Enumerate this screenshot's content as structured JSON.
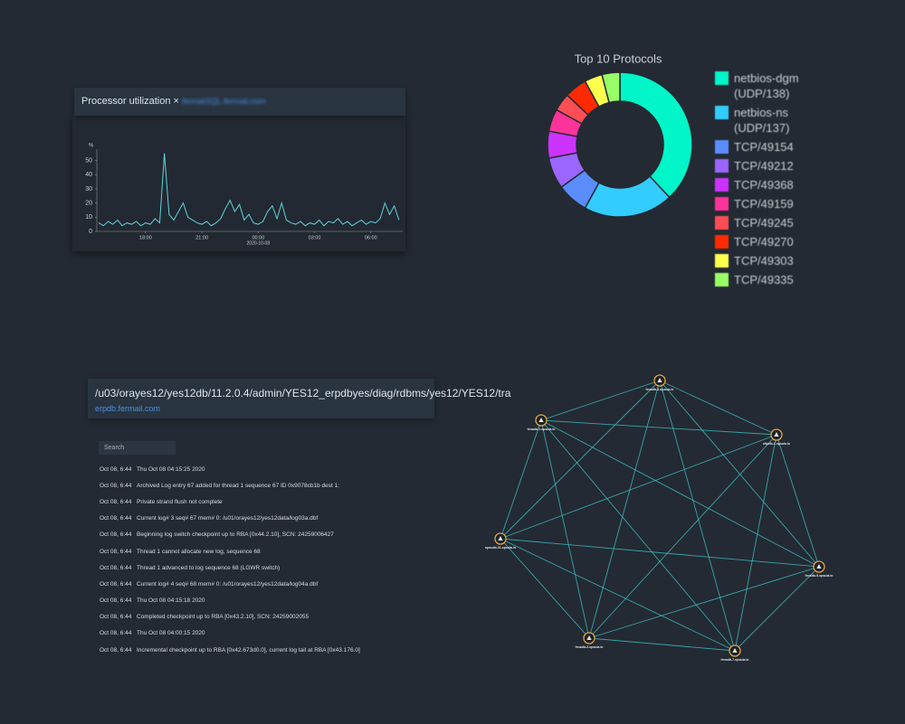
{
  "chart_data": [
    {
      "type": "line",
      "y_unit": "%",
      "color": "#5fd3dc",
      "x": [
        15.5,
        15.75,
        16,
        16.25,
        16.5,
        16.75,
        17,
        17.25,
        17.5,
        17.75,
        18,
        18.25,
        18.5,
        18.75,
        19,
        19.25,
        19.5,
        19.75,
        20,
        20.25,
        20.5,
        20.75,
        21,
        21.25,
        21.5,
        21.75,
        22,
        22.25,
        22.5,
        22.75,
        23,
        23.25,
        23.5,
        23.75,
        24,
        24.25,
        24.5,
        24.75,
        25,
        25.25,
        25.5,
        25.75,
        26,
        26.25,
        26.5,
        26.75,
        27,
        27.25,
        27.5,
        27.75,
        28,
        28.25,
        28.5,
        28.75,
        29,
        29.25,
        29.5,
        29.75,
        30,
        30.25,
        30.5,
        30.75,
        31,
        31.25,
        31.5
      ],
      "values": [
        6,
        4,
        7,
        5,
        8,
        4,
        6,
        5,
        7,
        4,
        6,
        5,
        9,
        6,
        55,
        12,
        8,
        14,
        20,
        10,
        8,
        6,
        5,
        7,
        4,
        6,
        9,
        16,
        22,
        14,
        19,
        8,
        12,
        6,
        5,
        7,
        14,
        18,
        9,
        20,
        8,
        6,
        5,
        7,
        4,
        6,
        5,
        8,
        4,
        7,
        6,
        9,
        5,
        7,
        4,
        6,
        8,
        5,
        7,
        6,
        9,
        20,
        12,
        18,
        8
      ],
      "xlim": [
        15.4,
        31.7
      ],
      "ylim": [
        0,
        58
      ],
      "yticks": [
        0,
        10,
        20,
        30,
        40,
        50
      ],
      "xticks": [
        {
          "value": 18,
          "label": "18:00"
        },
        {
          "value": 21,
          "label": "21:00"
        },
        {
          "value": 24,
          "label": "00:00"
        },
        {
          "value": 27,
          "label": "03:00"
        },
        {
          "value": 30,
          "label": "06:00"
        }
      ],
      "x_sublabel": "2020-10-08"
    },
    {
      "type": "pie",
      "title": "Top 10 Protocols",
      "categories": [
        "netbios-dgm (UDP/138)",
        "netbios-ns (UDP/137)",
        "TCP/49154",
        "TCP/49212",
        "TCP/49368",
        "TCP/49159",
        "TCP/49245",
        "TCP/49270",
        "TCP/49303",
        "TCP/49335"
      ],
      "values": [
        38,
        20,
        7,
        7,
        6,
        5,
        4,
        5,
        4,
        4
      ],
      "colors": [
        "#00f5c8",
        "#33ccff",
        "#5b8dff",
        "#9a66ff",
        "#cc33ff",
        "#ff3399",
        "#ff4d55",
        "#ff2a00",
        "#ffff4d",
        "#99ff66"
      ]
    }
  ],
  "cpu_panel": {
    "title": "Processor utilization ×",
    "host": "fermatSQL.fermail.com"
  },
  "log_panel": {
    "path": "/u03/orayes12/yes12db/11.2.0.4/admin/YES12_erpdbyes/diag/rdbms/yes12/YES12/tra",
    "host": "erpdb.fermail.com",
    "search": "Search",
    "entries": [
      {
        "time": "Oct 08, 6:44",
        "text": "Thu Oct 08 04:15:25 2020"
      },
      {
        "time": "Oct 08, 6:44",
        "text": "Archived Log entry 67 added for thread 1 sequence 67 ID 0x9078cb1b dest 1:"
      },
      {
        "time": "Oct 08, 6:44",
        "text": "Private strand flush not complete"
      },
      {
        "time": "Oct 08, 6:44",
        "text": "Current log# 3 seq# 67 mem# 0: /u01/orayes12/yes12data/log03a.dbf"
      },
      {
        "time": "Oct 08, 6:44",
        "text": "Beginning log switch checkpoint up to RBA [0x44.2.10], SCN: 24259006427"
      },
      {
        "time": "Oct 08, 6:44",
        "text": "Thread 1 cannot allocate new log, sequence 68"
      },
      {
        "time": "Oct 08, 6:44",
        "text": "Thread 1 advanced to log sequence 68 (LGWR switch)"
      },
      {
        "time": "Oct 08, 6:44",
        "text": "Current log# 4 seq# 68 mem# 0: /u01/orayes12/yes12data/log04a.dbf"
      },
      {
        "time": "Oct 08, 6:44",
        "text": "Thu Oct 08 04:15:18 2020"
      },
      {
        "time": "Oct 08, 6:44",
        "text": "Completed checkpoint up to RBA [0x43.2.10], SCN: 24259002055"
      },
      {
        "time": "Oct 08, 6:44",
        "text": "Thu Oct 08 04:00:15 2020"
      },
      {
        "time": "Oct 08, 6:44",
        "text": "Incremental checkpoint up to RBA [0x42.673d0.0], current log tail at RBA [0x43.176.0]"
      }
    ]
  },
  "topology": {
    "nodes": [
      {
        "label": "fenadb-3.opsula.io"
      },
      {
        "label": "fenadb-1.opsula.io"
      },
      {
        "label": "oltpdb-4.opsula.io"
      },
      {
        "label": "opsudb-01.opsula.io"
      },
      {
        "label": "fenadb-5.opsula.io"
      },
      {
        "label": "fenadb-2.opsula.io"
      },
      {
        "label": "fenadb-7.opsula.io"
      }
    ]
  }
}
